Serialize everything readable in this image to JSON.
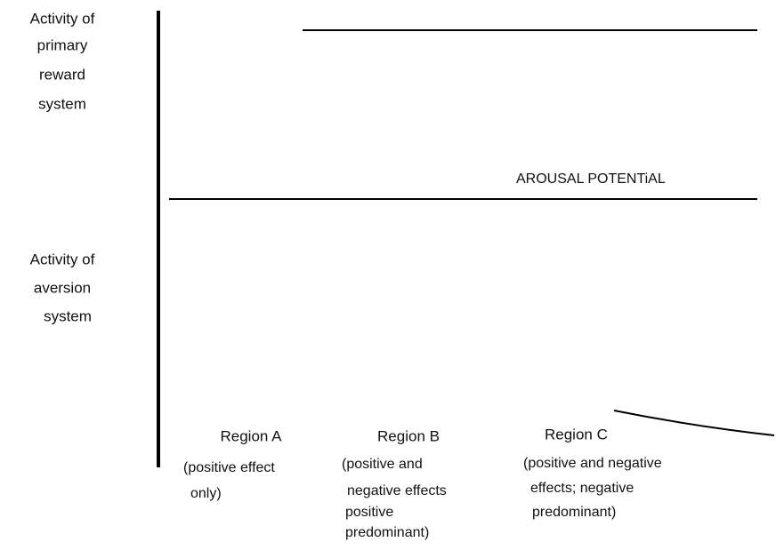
{
  "y_axis_labels": [
    {
      "lines": [
        "Activity of",
        "primary",
        "reward",
        "system"
      ]
    },
    {
      "lines": [
        "Activity of",
        "aversion",
        "system"
      ]
    }
  ],
  "x_axis_label": "AROUSAL POTENTiAL",
  "regions": [
    {
      "name": "Region A",
      "description": [
        "(positive effect",
        "only)"
      ]
    },
    {
      "name": "Region B",
      "description": [
        "(positive and",
        "negative effects",
        "positive",
        "predominant)"
      ]
    },
    {
      "name": "Region C",
      "description": [
        "(positive and negative",
        "effects; negative",
        "predominant)"
      ]
    }
  ]
}
